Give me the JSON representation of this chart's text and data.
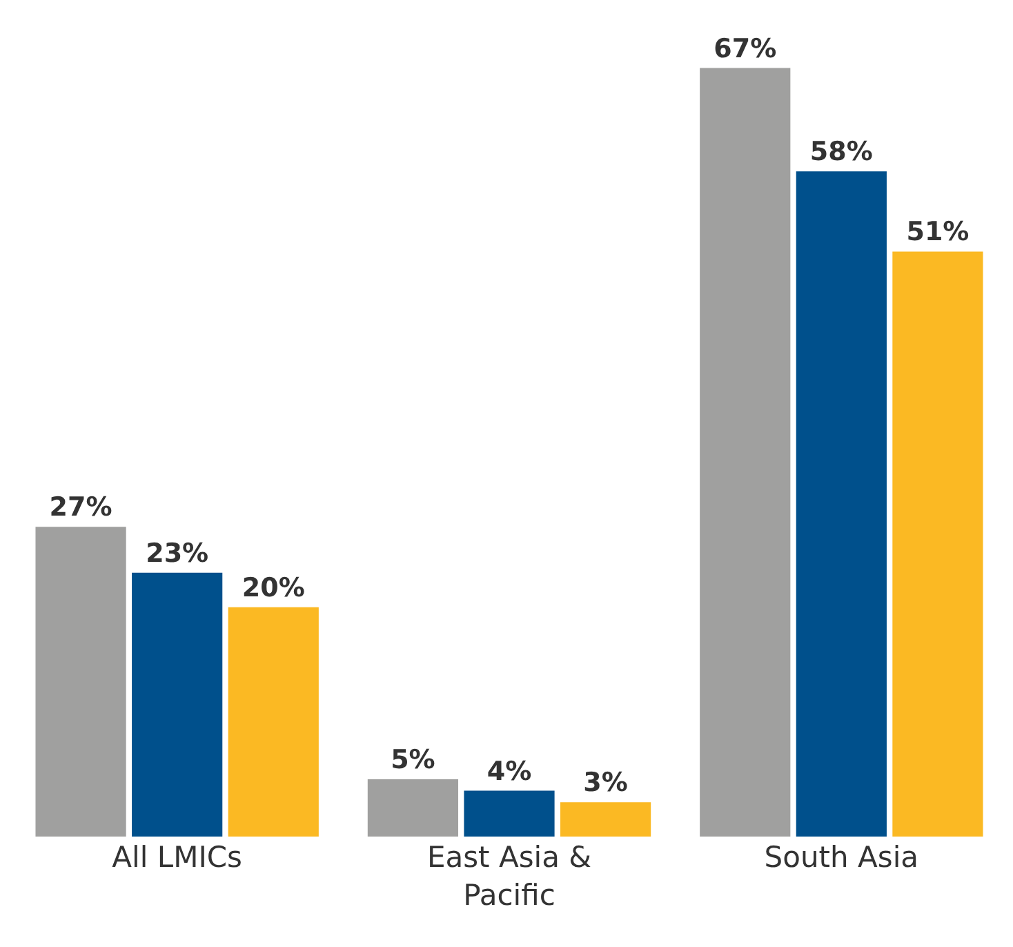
{
  "chart_data": {
    "type": "bar",
    "categories": [
      "All LMICs",
      "East Asia & Pacific",
      "South Asia"
    ],
    "series": [
      {
        "color": "#a0a09f",
        "values": [
          27,
          5,
          67
        ],
        "value_labels": [
          "27%",
          "5%",
          "67%"
        ]
      },
      {
        "color": "#00508c",
        "values": [
          23,
          4,
          58
        ],
        "value_labels": [
          "23%",
          "4%",
          "58%"
        ]
      },
      {
        "color": "#fbb923",
        "values": [
          20,
          3,
          51
        ],
        "value_labels": [
          "20%",
          "3%",
          "51%"
        ]
      }
    ]
  }
}
